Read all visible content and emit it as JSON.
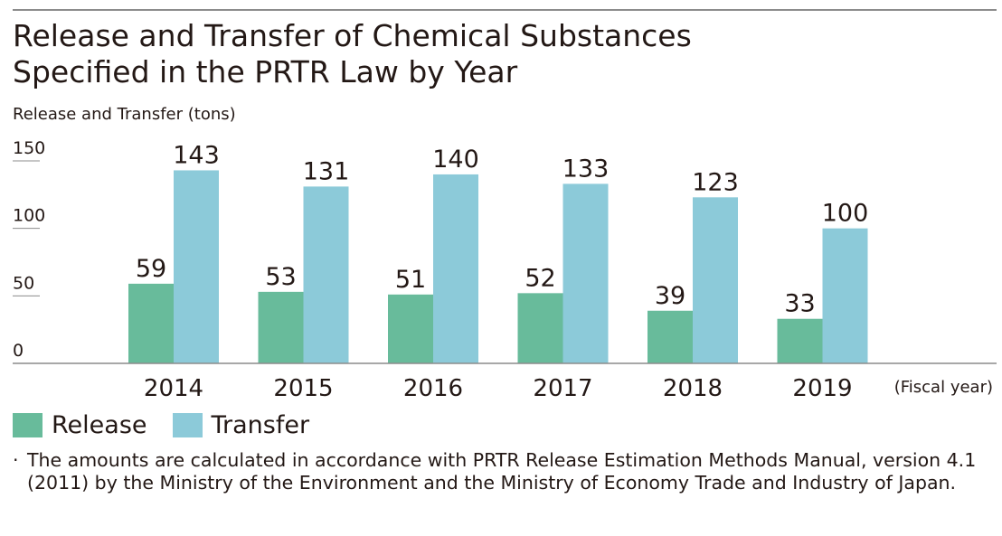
{
  "title_line1": "Release and Transfer of Chemical Substances",
  "title_line2": "Specified in the PRTR Law by Year",
  "note": {
    "bullet": "·",
    "text": "The amounts are calculated in accordance with PRTR Release Estimation Methods Manual, version 4.1 (2011) by the Ministry of the Environment and the Ministry of Economy Trade and Industry of Japan."
  },
  "colors": {
    "release": "#68bb9b",
    "transfer": "#8ccad9",
    "axis": "#8c8c8c"
  },
  "chart_data": {
    "type": "bar",
    "title": "Release and Transfer of Chemical Substances Specified in the PRTR Law by Year",
    "ylabel": "Release and Transfer (tons)",
    "xlabel": "(Fiscal year)",
    "categories": [
      "2014",
      "2015",
      "2016",
      "2017",
      "2018",
      "2019"
    ],
    "series": [
      {
        "name": "Release",
        "values": [
          59,
          53,
          51,
          52,
          39,
          33
        ]
      },
      {
        "name": "Transfer",
        "values": [
          143,
          131,
          140,
          133,
          123,
          100
        ]
      }
    ],
    "ylim": [
      0,
      150
    ],
    "yticks": [
      0,
      50,
      100,
      150
    ],
    "grid": false,
    "legend": "bottom-left"
  }
}
